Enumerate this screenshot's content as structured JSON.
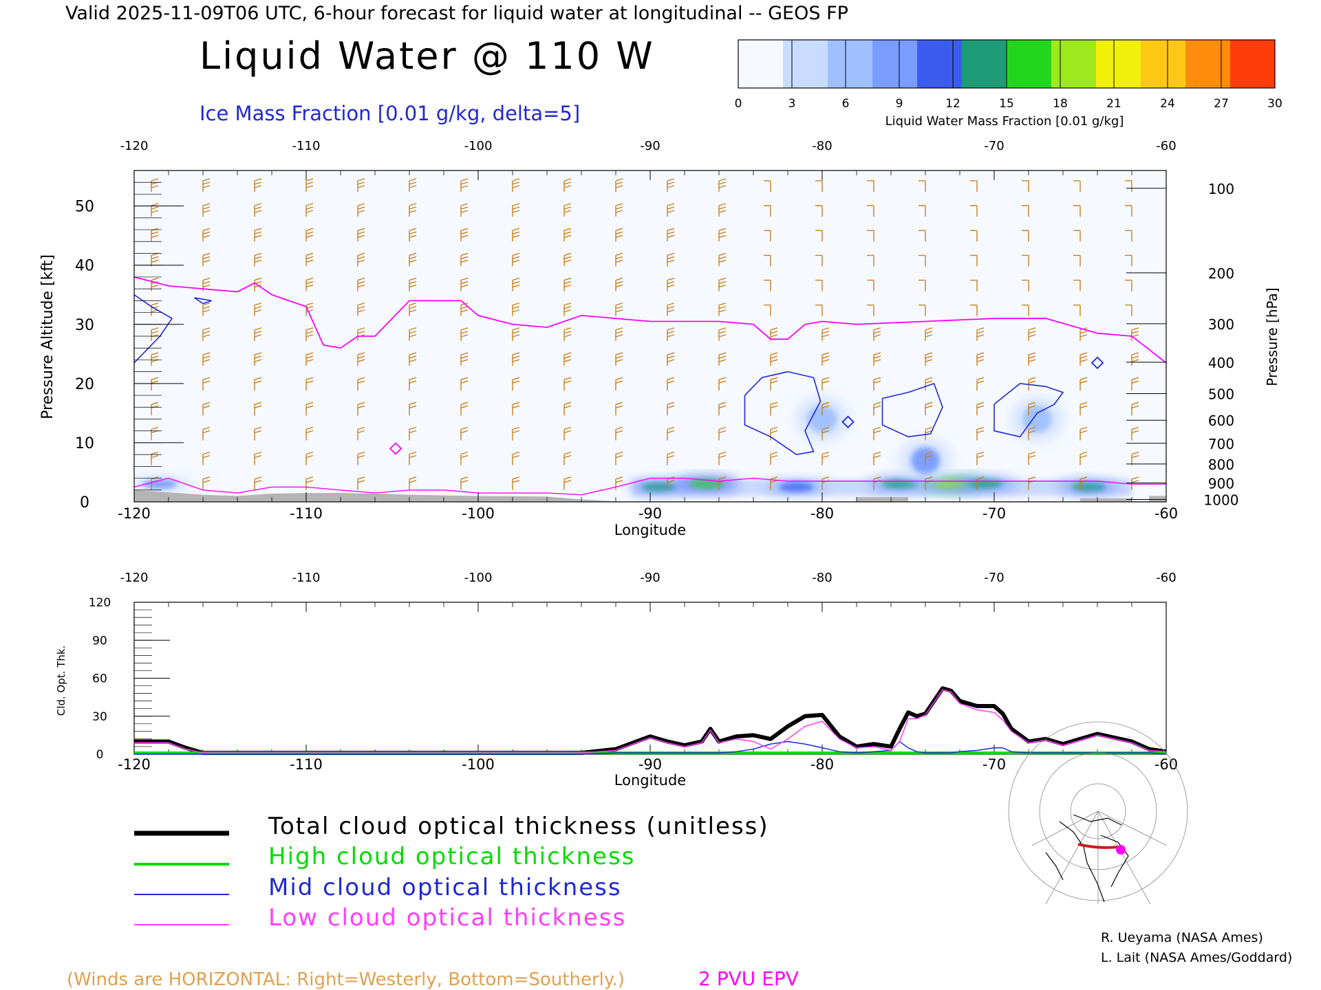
{
  "header": {
    "valid_line": "Valid 2025-11-09T06 UTC, 6-hour forecast for liquid water at longitudinal -- GEOS FP",
    "title": "Liquid Water @ 110 W",
    "subtitle": "Ice Mass Fraction [0.01 g/kg, delta=5]"
  },
  "colorbar": {
    "label": "Liquid Water Mass Fraction [0.01 g/kg]",
    "ticks": [
      "0",
      "3",
      "6",
      "9",
      "12",
      "15",
      "18",
      "21",
      "24",
      "27",
      "30"
    ],
    "colors": [
      "#f6f9ff",
      "#c9dcff",
      "#a0c0ff",
      "#7a9cff",
      "#3c5cf0",
      "#1e9c78",
      "#22d61e",
      "#9ee81e",
      "#f0f00a",
      "#ffc814",
      "#ff8c0a",
      "#ff3c0a"
    ]
  },
  "colors": {
    "wind_barbs": "#c8801e",
    "ice_contour": "#1e28d2",
    "epv_line": "#ff00ff",
    "total": "#000000",
    "high": "#00dc00",
    "mid": "#1e28d2",
    "low": "#ff3cff"
  },
  "chart_data": [
    {
      "type": "heatmap",
      "xlabel": "Longitude",
      "ylabel": "Pressure Altitude [kft]",
      "y2label": "Pressure [hPa]",
      "xlim": [
        -120,
        -60
      ],
      "ylim": [
        0,
        56
      ],
      "xticks": [
        "-120",
        "-110",
        "-100",
        "-90",
        "-80",
        "-70",
        "-60"
      ],
      "xtick_values": [
        -120,
        -110,
        -100,
        -90,
        -80,
        -70,
        -60
      ],
      "yticks": [
        "0",
        "10",
        "20",
        "30",
        "40",
        "50"
      ],
      "ytick_values": [
        0,
        10,
        20,
        30,
        40,
        50
      ],
      "pressure_ticks": [
        {
          "label": "100",
          "kft": 53.0
        },
        {
          "label": "200",
          "kft": 38.7
        },
        {
          "label": "300",
          "kft": 30.1
        },
        {
          "label": "400",
          "kft": 23.6
        },
        {
          "label": "500",
          "kft": 18.3
        },
        {
          "label": "600",
          "kft": 13.8
        },
        {
          "label": "700",
          "kft": 9.9
        },
        {
          "label": "800",
          "kft": 6.4
        },
        {
          "label": "900",
          "kft": 3.2
        },
        {
          "label": "1000",
          "kft": 0.4
        }
      ],
      "epv_2pvu": {
        "upper_lon": [
          -120,
          -118,
          -116,
          -114,
          -113,
          -112,
          -111,
          -110,
          -109,
          -108,
          -107,
          -106,
          -104,
          -102,
          -101,
          -100,
          -98,
          -96,
          -94,
          -90,
          -86,
          -84,
          -83,
          -82,
          -81,
          -80,
          -78,
          -74,
          -70,
          -67,
          -64,
          -62,
          -60
        ],
        "upper_kft": [
          38,
          36.5,
          36,
          35.5,
          37,
          35,
          34,
          33,
          26.5,
          26,
          28,
          28,
          34,
          34,
          34,
          31.5,
          30,
          29.5,
          31.5,
          30.5,
          30.5,
          30,
          27.5,
          27.5,
          30,
          30.5,
          30,
          30.5,
          31,
          31,
          28.5,
          28,
          23.5
        ],
        "lower_lon": [
          -120,
          -118,
          -116,
          -114,
          -112,
          -110,
          -108,
          -106,
          -104,
          -102,
          -100,
          -96,
          -94,
          -92,
          -90,
          -88,
          -86,
          -84,
          -82,
          -80,
          -78,
          -76,
          -74,
          -72,
          -70,
          -68,
          -66,
          -64,
          -62,
          -60
        ],
        "lower_kft": [
          2.5,
          4,
          2,
          1.5,
          2.5,
          2.5,
          2,
          1.5,
          2,
          2,
          1.5,
          1.5,
          1.2,
          2.5,
          4,
          4,
          3.5,
          4,
          3.5,
          3.5,
          3.5,
          3.5,
          3.5,
          3.5,
          3.5,
          3.5,
          3.5,
          3.5,
          3,
          3
        ]
      },
      "ice_contours": [
        {
          "lon": [
            -84.5,
            -83.5,
            -82,
            -80.5,
            -80.1,
            -81,
            -80.5,
            -81.5,
            -83,
            -84.5,
            -84.5
          ],
          "kft": [
            18,
            21,
            22,
            21,
            17,
            12,
            8.5,
            8,
            11,
            13,
            18
          ]
        },
        {
          "lon": [
            -76.5,
            -75,
            -73.5,
            -73,
            -73.7,
            -75,
            -76.5,
            -76.5
          ],
          "kft": [
            17.5,
            18.5,
            20,
            16,
            11.5,
            11,
            13,
            17.5
          ]
        },
        {
          "lon": [
            -70,
            -68.5,
            -67,
            -66,
            -66.5,
            -67.5,
            -68.5,
            -70,
            -70
          ],
          "kft": [
            16.5,
            20,
            19.5,
            18.5,
            16.5,
            15,
            11,
            12,
            16.5
          ]
        },
        {
          "lon": [
            -120,
            -119,
            -117.8,
            -118.5,
            -120
          ],
          "kft": [
            35,
            33,
            31,
            28,
            23.5
          ]
        },
        {
          "lon": [
            -116.5,
            -115.5,
            -116,
            -116.5
          ],
          "kft": [
            34.5,
            34,
            33.5,
            34.5
          ]
        }
      ],
      "liquid_blobs": [
        {
          "lon": -89.5,
          "kft": 2.5,
          "value": 14
        },
        {
          "lon": -86.7,
          "kft": 3.0,
          "value": 15
        },
        {
          "lon": -81.5,
          "kft": 2.5,
          "value": 9
        },
        {
          "lon": -75.5,
          "kft": 3.0,
          "value": 14
        },
        {
          "lon": -72.5,
          "kft": 3.0,
          "value": 18
        },
        {
          "lon": -70.5,
          "kft": 3.0,
          "value": 14
        },
        {
          "lon": -64.5,
          "kft": 2.5,
          "value": 12
        },
        {
          "lon": -118.5,
          "kft": 3.0,
          "value": 6
        },
        {
          "lon": -74,
          "kft": 7,
          "value": 6
        },
        {
          "lon": -67.5,
          "kft": 14,
          "value": 4
        },
        {
          "lon": -80,
          "kft": 14,
          "value": 3
        }
      ]
    },
    {
      "type": "line",
      "xlabel": "Longitude",
      "ylabel": "Cld. Opt. Thk.",
      "xlim": [
        -120,
        -60
      ],
      "ylim": [
        0,
        120
      ],
      "xticks": [
        "-120",
        "-110",
        "-100",
        "-90",
        "-80",
        "-70",
        "-60"
      ],
      "xtick_values": [
        -120,
        -110,
        -100,
        -90,
        -80,
        -70,
        -60
      ],
      "yticks": [
        "0",
        "30",
        "60",
        "90",
        "120"
      ],
      "ytick_values": [
        0,
        30,
        60,
        90,
        120
      ],
      "x": [
        -120,
        -118,
        -117,
        -116,
        -110,
        -100,
        -94,
        -92,
        -90,
        -89,
        -88,
        -87,
        -86.5,
        -86,
        -85,
        -84,
        -83,
        -82,
        -81,
        -80,
        -79,
        -78,
        -77,
        -76,
        -75.5,
        -75,
        -74.5,
        -74,
        -73.5,
        -73,
        -72.5,
        -72,
        -71,
        -70,
        -69.5,
        -69,
        -68,
        -67,
        -66,
        -65,
        -64,
        -63,
        -62,
        -61,
        -60
      ],
      "series": [
        {
          "name": "Total cloud optical thickness (unitless)",
          "values": [
            10,
            10,
            5,
            1,
            1,
            1,
            1,
            4,
            14,
            10,
            7,
            10,
            20,
            10,
            14,
            15,
            12,
            22,
            30,
            31,
            14,
            6,
            8,
            6,
            20,
            33,
            30,
            32,
            42,
            52,
            50,
            42,
            38,
            38,
            32,
            20,
            10,
            12,
            8,
            12,
            16,
            13,
            10,
            4,
            2
          ]
        },
        {
          "name": "High cloud optical thickness",
          "values": [
            1,
            1,
            1,
            1,
            1,
            1,
            1,
            1,
            1,
            1,
            1,
            1,
            1,
            1,
            1,
            1,
            1,
            1,
            1,
            1,
            1,
            1,
            1,
            1,
            1,
            1,
            1,
            1,
            1,
            1,
            1,
            1,
            1,
            1,
            1,
            1,
            1,
            1,
            1,
            1,
            1,
            1,
            1,
            1,
            1
          ]
        },
        {
          "name": "Mid cloud optical thickness",
          "values": [
            0,
            0,
            0,
            0,
            0,
            0,
            0,
            1,
            1,
            1,
            1,
            1,
            1,
            1,
            2,
            4,
            8,
            10,
            8,
            5,
            2,
            1,
            2,
            3,
            10,
            5,
            2,
            1,
            1,
            1,
            1,
            2,
            3,
            5,
            5,
            2,
            1,
            1,
            1,
            1,
            1,
            1,
            1,
            1,
            0
          ]
        },
        {
          "name": "Low cloud optical thickness",
          "values": [
            9,
            9,
            4,
            1,
            1,
            1,
            1,
            3,
            13,
            9,
            6,
            9,
            19,
            9,
            12,
            10,
            4,
            12,
            22,
            26,
            12,
            5,
            6,
            3,
            10,
            28,
            28,
            31,
            41,
            51,
            49,
            40,
            35,
            33,
            27,
            18,
            9,
            11,
            7,
            11,
            15,
            12,
            9,
            3,
            2
          ]
        }
      ]
    }
  ],
  "legend": {
    "total": "Total cloud optical thickness (unitless)",
    "high": "High cloud optical thickness",
    "mid": "Mid cloud optical thickness",
    "low": "Low cloud optical thickness"
  },
  "footer": {
    "winds_note": "(Winds are HORIZONTAL: Right=Westerly, Bottom=Southerly.)",
    "epv_label": "2 PVU EPV",
    "credit1": "R. Ueyama (NASA Ames)",
    "credit2": "L. Lait (NASA Ames/Goddard)"
  }
}
